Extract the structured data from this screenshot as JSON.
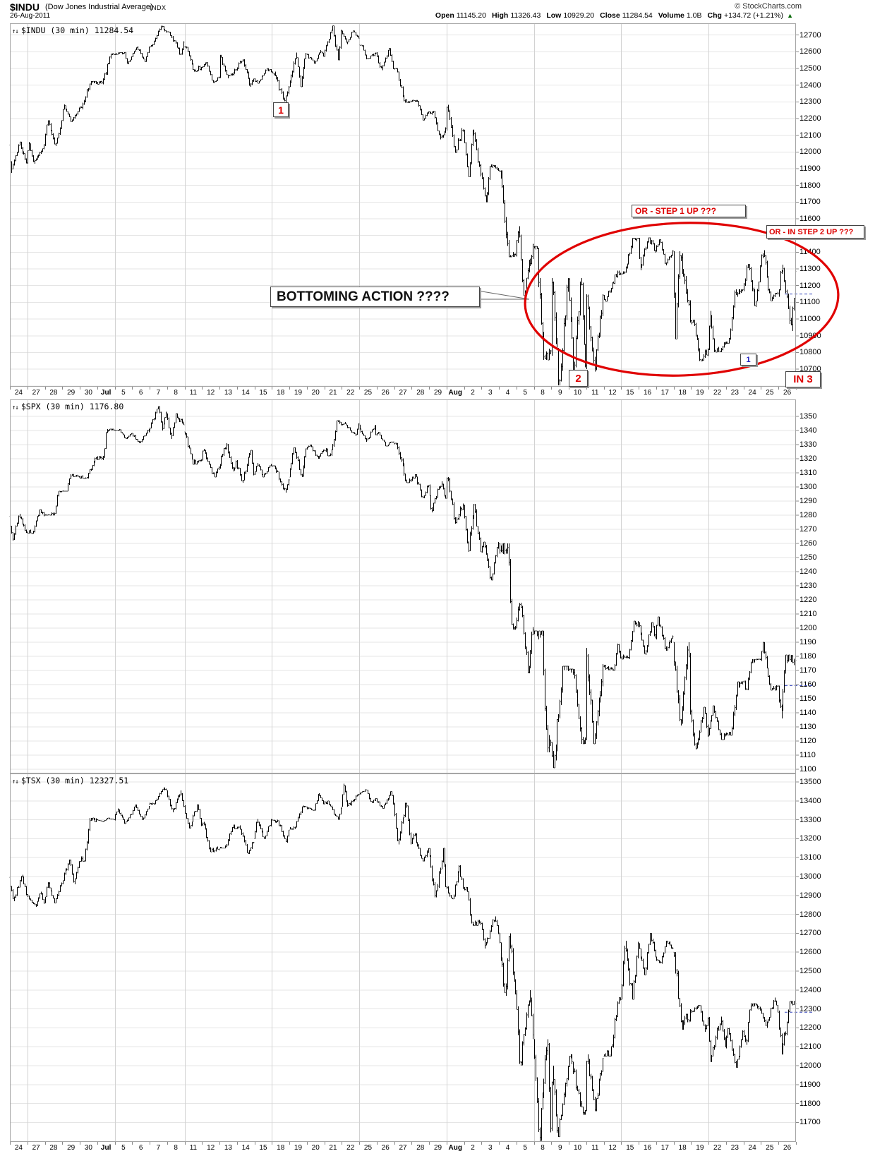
{
  "header": {
    "symbol": "$INDU",
    "name": "(Dow Jones Industrial Average)",
    "exchange": "INDX",
    "date": "26-Aug-2011",
    "copyright": "© StockCharts.com",
    "quote": [
      {
        "label": "Open",
        "value": "11145.20"
      },
      {
        "label": "High",
        "value": "11326.43"
      },
      {
        "label": "Low",
        "value": "10929.20"
      },
      {
        "label": "Close",
        "value": "11284.54"
      },
      {
        "label": "Volume",
        "value": "1.0B"
      },
      {
        "label": "Chg",
        "value": "+134.72 (+1.21%)"
      }
    ],
    "chg_dir": "▲",
    "chg_color": "#006600"
  },
  "icons": {
    "updown": "↑↓"
  },
  "x_axis": {
    "labels": [
      "24",
      "27",
      "28",
      "29",
      "30",
      "Jul",
      "5",
      "6",
      "7",
      "8",
      "11",
      "12",
      "13",
      "14",
      "15",
      "18",
      "19",
      "20",
      "21",
      "22",
      "25",
      "26",
      "27",
      "28",
      "29",
      "Aug",
      "2",
      "3",
      "4",
      "5",
      "8",
      "9",
      "10",
      "11",
      "12",
      "15",
      "16",
      "17",
      "18",
      "19",
      "22",
      "23",
      "24",
      "25",
      "26"
    ],
    "bold_labels": [
      "Jul",
      "Aug"
    ]
  },
  "annotations": {
    "wave1": "1",
    "step1": "OR - STEP 1 UP ???",
    "step2": "OR - IN STEP 2 UP ???",
    "bottoming": "BOTTOMING ACTION ????",
    "wave2": "2",
    "wave1b": "1",
    "in3": "IN 3",
    "red": "#dd0000",
    "blue": "#2020c0"
  },
  "chart_data": [
    {
      "type": "bar",
      "symbol": "$INDU",
      "timeframe": "30 min",
      "title": "$INDU (30 min) 11284.54",
      "last": 11284.54,
      "ymax_label": 12700,
      "ymin_label": 10600,
      "ystep": 100,
      "ylim": [
        10595,
        12770
      ],
      "prev_close": 11150,
      "grid": true,
      "legend_position": "top-left",
      "days": [
        [
          11934,
          11875,
          12060
        ],
        [
          12043,
          11930,
          12060
        ],
        [
          12188,
          12036,
          12190
        ],
        [
          12261,
          12180,
          12284
        ],
        [
          12414,
          12255,
          12423
        ],
        [
          12582,
          12405,
          12589
        ],
        [
          12570,
          12525,
          12596
        ],
        [
          12626,
          12540,
          12632
        ],
        [
          12719,
          12630,
          12754
        ],
        [
          12657,
          12580,
          12720
        ],
        [
          12505,
          12481,
          12630
        ],
        [
          12446,
          12415,
          12535
        ],
        [
          12492,
          12440,
          12580
        ],
        [
          12437,
          12390,
          12555
        ],
        [
          12480,
          12410,
          12500
        ],
        [
          12385,
          12295,
          12480
        ],
        [
          12587,
          12390,
          12595
        ],
        [
          12572,
          12530,
          12610
        ],
        [
          12724,
          12550,
          12755
        ],
        [
          12681,
          12645,
          12725
        ],
        [
          12592,
          12555,
          12640
        ],
        [
          12501,
          12490,
          12620
        ],
        [
          12302,
          12295,
          12500
        ],
        [
          12240,
          12190,
          12310
        ],
        [
          12143,
          12075,
          12245
        ],
        [
          12132,
          11995,
          12282
        ],
        [
          11867,
          11850,
          12135
        ],
        [
          11896,
          11700,
          11925
        ],
        [
          11384,
          11372,
          11890
        ],
        [
          11445,
          11140,
          11555
        ],
        [
          10810,
          10755,
          11435
        ],
        [
          11240,
          10604,
          11245
        ],
        [
          10720,
          10686,
          11245
        ],
        [
          11143,
          10686,
          11149
        ],
        [
          11269,
          11105,
          11290
        ],
        [
          11482,
          11270,
          11484
        ],
        [
          11405,
          11291,
          11489
        ],
        [
          11410,
          11322,
          11476
        ],
        [
          10990,
          10881,
          11405
        ],
        [
          10817,
          10749,
          10995
        ],
        [
          10854,
          10802,
          11050
        ],
        [
          11177,
          10854,
          11177
        ],
        [
          11320,
          11073,
          11329
        ],
        [
          11150,
          11109,
          11412
        ],
        [
          11284,
          10929,
          11326
        ]
      ]
    },
    {
      "type": "bar",
      "symbol": "$SPX",
      "timeframe": "30 min",
      "title": "$SPX (30 min) 1176.80",
      "last": 1176.8,
      "ymax_label": 1350,
      "ymin_label": 1100,
      "ystep": 10,
      "ylim": [
        1097,
        1362
      ],
      "prev_close": 1159.3,
      "grid": true,
      "legend_position": "top-left",
      "days": [
        [
          1268,
          1262,
          1281
        ],
        [
          1280,
          1267,
          1284
        ],
        [
          1297,
          1280,
          1297
        ],
        [
          1307,
          1297,
          1309
        ],
        [
          1321,
          1306,
          1321
        ],
        [
          1340,
          1319,
          1341
        ],
        [
          1338,
          1334,
          1341
        ],
        [
          1339,
          1331,
          1341
        ],
        [
          1353,
          1340,
          1357
        ],
        [
          1344,
          1334,
          1352
        ],
        [
          1319,
          1316,
          1339
        ],
        [
          1314,
          1307,
          1327
        ],
        [
          1318,
          1311,
          1331
        ],
        [
          1309,
          1303,
          1326
        ],
        [
          1316,
          1307,
          1317
        ],
        [
          1305,
          1296,
          1315
        ],
        [
          1327,
          1307,
          1328
        ],
        [
          1326,
          1320,
          1330
        ],
        [
          1344,
          1322,
          1347
        ],
        [
          1345,
          1336,
          1346
        ],
        [
          1337,
          1332,
          1344
        ],
        [
          1332,
          1329,
          1339
        ],
        [
          1305,
          1303,
          1331
        ],
        [
          1301,
          1292,
          1309
        ],
        [
          1292,
          1282,
          1304
        ],
        [
          1287,
          1274,
          1307
        ],
        [
          1254,
          1254,
          1288
        ],
        [
          1260,
          1234,
          1261
        ],
        [
          1200,
          1199,
          1260
        ],
        [
          1199,
          1168,
          1218
        ],
        [
          1119,
          1112,
          1198
        ],
        [
          1173,
          1101,
          1173
        ],
        [
          1121,
          1118,
          1171
        ],
        [
          1173,
          1118,
          1186
        ],
        [
          1179,
          1170,
          1189
        ],
        [
          1204,
          1178,
          1205
        ],
        [
          1193,
          1181,
          1204
        ],
        [
          1194,
          1184,
          1208
        ],
        [
          1141,
          1131,
          1190
        ],
        [
          1124,
          1114,
          1144
        ],
        [
          1124,
          1121,
          1145
        ],
        [
          1162,
          1124,
          1162
        ],
        [
          1178,
          1156,
          1178
        ],
        [
          1159,
          1156,
          1190
        ],
        [
          1177,
          1136,
          1181
        ]
      ]
    },
    {
      "type": "bar",
      "symbol": "$TSX",
      "timeframe": "30 min",
      "title": "$TSX (30 min) 12327.51",
      "last": 12327.51,
      "ymax_label": 13500,
      "ymin_label": 11700,
      "ystep": 100,
      "ylim": [
        11597,
        13545
      ],
      "prev_close": 12283,
      "grid": true,
      "legend_position": "top-left",
      "days": [
        [
          12905,
          12870,
          13010
        ],
        [
          12859,
          12840,
          12920
        ],
        [
          12963,
          12860,
          12970
        ],
        [
          13080,
          12960,
          13090
        ],
        [
          13301,
          13080,
          13310
        ],
        [
          13301,
          13290,
          13310
        ],
        [
          13330,
          13280,
          13360
        ],
        [
          13371,
          13300,
          13380
        ],
        [
          13462,
          13380,
          13470
        ],
        [
          13371,
          13340,
          13455
        ],
        [
          13273,
          13255,
          13380
        ],
        [
          13142,
          13130,
          13290
        ],
        [
          13255,
          13150,
          13275
        ],
        [
          13182,
          13120,
          13270
        ],
        [
          13299,
          13200,
          13305
        ],
        [
          13244,
          13180,
          13300
        ],
        [
          13368,
          13250,
          13375
        ],
        [
          13384,
          13350,
          13440
        ],
        [
          13361,
          13300,
          13400
        ],
        [
          13436,
          13370,
          13490
        ],
        [
          13413,
          13390,
          13460
        ],
        [
          13384,
          13360,
          13450
        ],
        [
          13178,
          13170,
          13390
        ],
        [
          13149,
          13080,
          13230
        ],
        [
          12945,
          12890,
          13150
        ],
        [
          12940,
          12880,
          13060
        ],
        [
          12752,
          12740,
          12945
        ],
        [
          12704,
          12620,
          12790
        ],
        [
          12380,
          12370,
          12700
        ],
        [
          12162,
          12000,
          12400
        ],
        [
          11670,
          11600,
          12140
        ],
        [
          11994,
          11624,
          12000
        ],
        [
          11764,
          11740,
          12060
        ],
        [
          12038,
          11760,
          12060
        ],
        [
          12350,
          12050,
          12360
        ],
        [
          12645,
          12350,
          12660
        ],
        [
          12574,
          12480,
          12700
        ],
        [
          12622,
          12540,
          12660
        ],
        [
          12290,
          12190,
          12600
        ],
        [
          12250,
          12180,
          12320
        ],
        [
          12100,
          12020,
          12260
        ],
        [
          12180,
          11990,
          12200
        ],
        [
          12300,
          12110,
          12330
        ],
        [
          12283,
          12200,
          12360
        ],
        [
          12327,
          12060,
          12340
        ]
      ]
    }
  ]
}
